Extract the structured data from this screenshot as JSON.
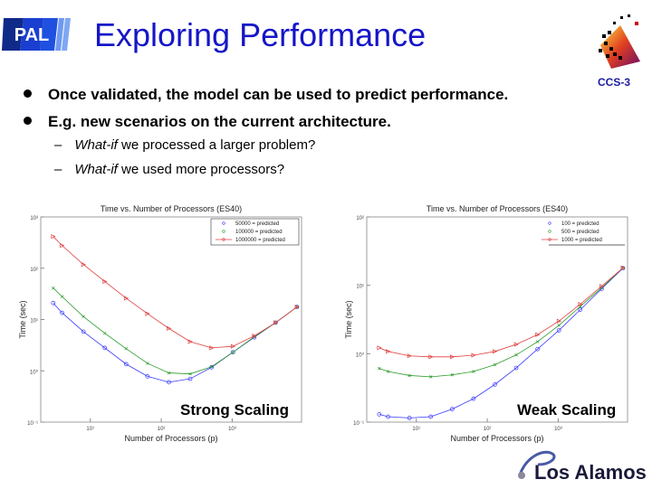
{
  "slide": {
    "title": "Exploring Performance",
    "logo_left_text": "PAL",
    "logo_right_label": "CCS-3",
    "logo_bottom_text": "Los Alamos",
    "bullets": [
      "Once validated, the model can be used to predict performance.",
      "E.g. new scenarios on the current architecture."
    ],
    "sub_bullets": [
      {
        "dash": "–",
        "emph": "What-if",
        "rest": " we processed a larger problem?"
      },
      {
        "dash": "–",
        "emph": "What-if",
        "rest": " we used more processors?"
      }
    ]
  },
  "colors": {
    "title": "#1515c8",
    "series": [
      "#3a3aff",
      "#2a9a2a",
      "#e04040"
    ]
  },
  "chart_data": [
    {
      "type": "line",
      "title": "Time vs. Number of Processors (ES40)",
      "xlabel": "Number of Processors (p)",
      "ylabel": "Time (sec)",
      "overlay_label": "Strong Scaling",
      "x_scale": "log",
      "y_scale": "log",
      "xlim": [
        2,
        9500
      ],
      "ylim": [
        0.1,
        1000
      ],
      "x_ticks": [
        {
          "v": 10,
          "label": "10¹"
        },
        {
          "v": 100,
          "label": "10²"
        },
        {
          "v": 1000,
          "label": "10³"
        }
      ],
      "y_ticks": [
        {
          "v": 0.1,
          "label": "10⁻¹"
        },
        {
          "v": 1,
          "label": "10⁰"
        },
        {
          "v": 10,
          "label": "10¹"
        },
        {
          "v": 100,
          "label": "10²"
        },
        {
          "v": 1000,
          "label": "10³"
        }
      ],
      "legend": "top-right",
      "x": [
        3,
        4,
        8,
        16,
        32,
        64,
        128,
        256,
        512,
        1024,
        2048,
        4096,
        8192
      ],
      "series": [
        {
          "name": "50000 = predicted",
          "marker": "circle",
          "values": [
            21,
            13.5,
            5.8,
            2.8,
            1.35,
            0.78,
            0.6,
            0.7,
            1.17,
            2.3,
            4.5,
            8.7,
            17.6
          ]
        },
        {
          "name": "100000 = predicted",
          "marker": "x",
          "values": [
            41,
            28,
            11.4,
            5.4,
            2.7,
            1.4,
            0.91,
            0.87,
            1.2,
            2.3,
            4.6,
            8.7,
            17.6
          ]
        },
        {
          "name": "1000000 = predicted",
          "marker": "triangle",
          "values": [
            415,
            277,
            118,
            55,
            26,
            13,
            6.7,
            3.7,
            2.8,
            3.0,
            4.8,
            8.7,
            17.6
          ]
        }
      ]
    },
    {
      "type": "line",
      "title": "Time vs. Number of Processors (ES40)",
      "xlabel": "Number of Processors (p)",
      "ylabel": "Time (sec)",
      "overlay_label": "Weak Scaling",
      "x_scale": "log",
      "y_scale": "log",
      "xlim": [
        2,
        9500
      ],
      "ylim": [
        0.1,
        100
      ],
      "x_ticks": [
        {
          "v": 10,
          "label": "10¹"
        },
        {
          "v": 100,
          "label": "10²"
        },
        {
          "v": 1000,
          "label": "10³"
        }
      ],
      "y_ticks": [
        {
          "v": 0.1,
          "label": "10⁻¹"
        },
        {
          "v": 1,
          "label": "10⁰"
        },
        {
          "v": 10,
          "label": "10¹"
        },
        {
          "v": 100,
          "label": "10²"
        }
      ],
      "legend": "top-right",
      "x": [
        3,
        4,
        8,
        16,
        32,
        64,
        128,
        256,
        512,
        1024,
        2048,
        4096,
        8192
      ],
      "series": [
        {
          "name": "100 = predicted",
          "marker": "circle",
          "values": [
            0.13,
            0.12,
            0.115,
            0.12,
            0.155,
            0.22,
            0.355,
            0.62,
            1.17,
            2.2,
            4.4,
            8.9,
            17.8
          ]
        },
        {
          "name": "500 = predicted",
          "marker": "x",
          "values": [
            0.61,
            0.55,
            0.48,
            0.46,
            0.49,
            0.55,
            0.69,
            0.96,
            1.5,
            2.6,
            4.9,
            9.2,
            18
          ]
        },
        {
          "name": "1000 = predicted",
          "marker": "triangle",
          "values": [
            1.22,
            1.08,
            0.93,
            0.9,
            0.9,
            0.95,
            1.08,
            1.37,
            1.9,
            3.0,
            5.3,
            9.7,
            18
          ]
        }
      ]
    }
  ]
}
